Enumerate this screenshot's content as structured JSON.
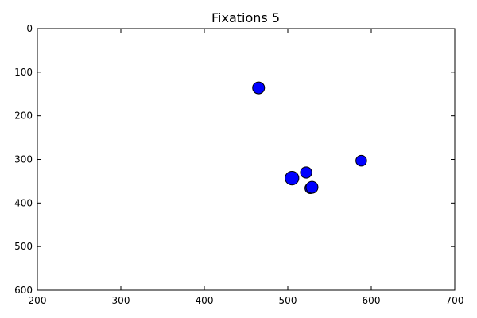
{
  "chart_data": {
    "type": "scatter",
    "title": "Fixations 5",
    "xlabel": "",
    "ylabel": "",
    "xlim": [
      200,
      700
    ],
    "ylim": [
      0,
      600
    ],
    "y_inverted": true,
    "x_ticks": [
      200,
      300,
      400,
      500,
      600,
      700
    ],
    "y_ticks": [
      0,
      100,
      200,
      300,
      400,
      500,
      600
    ],
    "grid": false,
    "legend": "none",
    "marker_color": "#0000ff",
    "marker_edge_color": "#000000",
    "series": [
      {
        "points": [
          {
            "x": 465,
            "y": 136,
            "size": 1.0
          },
          {
            "x": 588,
            "y": 303,
            "size": 0.9
          },
          {
            "x": 522,
            "y": 330,
            "size": 0.95
          },
          {
            "x": 505,
            "y": 343,
            "size": 1.15
          },
          {
            "x": 527,
            "y": 366,
            "size": 0.9
          },
          {
            "x": 529,
            "y": 364,
            "size": 1.0
          }
        ]
      }
    ]
  }
}
